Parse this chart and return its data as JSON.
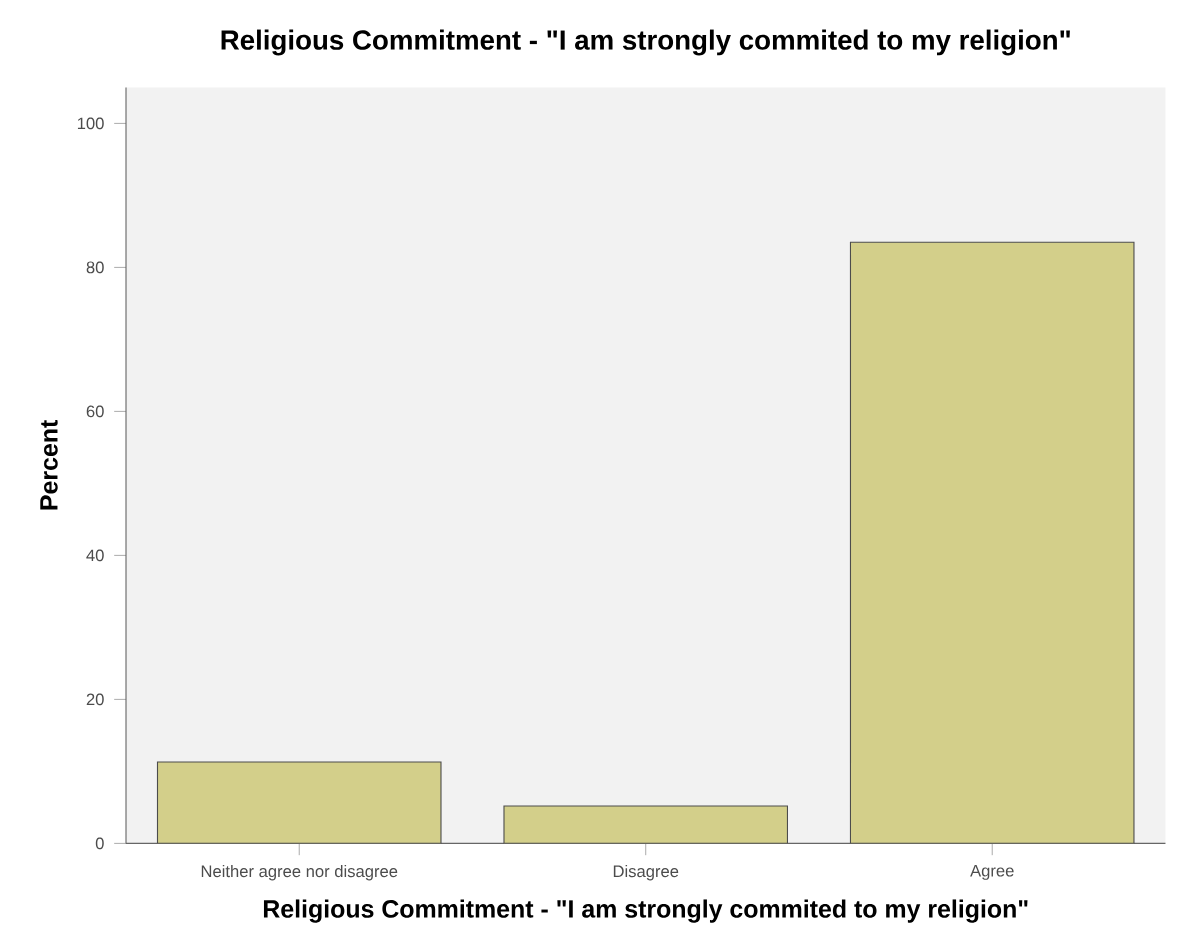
{
  "chart_data": {
    "type": "bar",
    "title": "Religious Commitment - \"I am strongly commited to my religion\"",
    "xlabel": "Religious Commitment - \"I am strongly commited to my religion\"",
    "ylabel": "Percent",
    "categories": [
      "Neither agree nor disagree",
      "Disagree",
      "Agree"
    ],
    "values": [
      11.3,
      5.2,
      83.5
    ],
    "color": "#d3cf8a",
    "ylim": [
      0,
      105
    ],
    "yticks": [
      0,
      20,
      40,
      60,
      80,
      100
    ]
  }
}
